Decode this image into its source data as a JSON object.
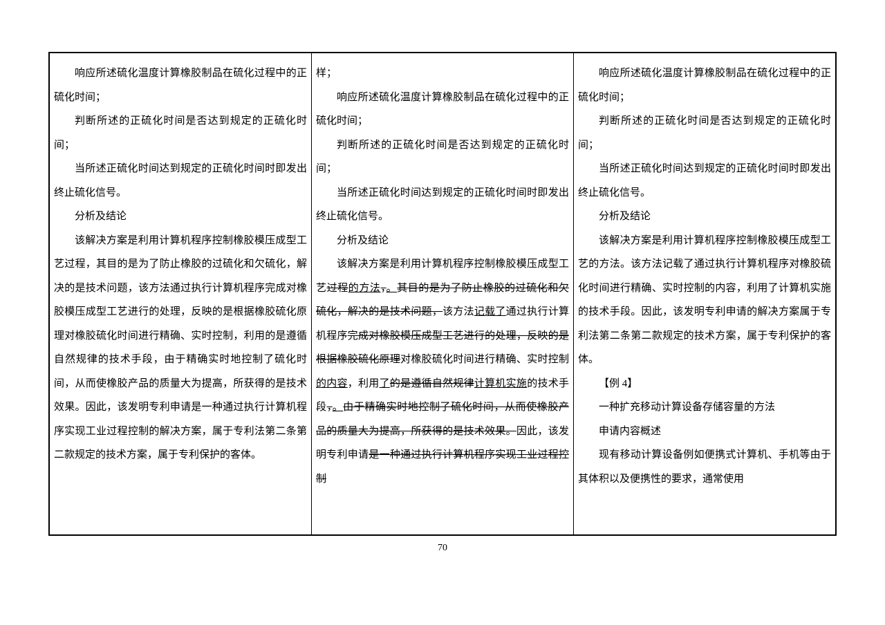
{
  "pageNumber": "70",
  "column1": {
    "p1": "响应所述硫化温度计算橡胶制品在硫化过程中的正硫化时间；",
    "p2": "判断所述的正硫化时间是否达到规定的正硫化时间；",
    "p3": "当所述正硫化时间达到规定的正硫化时间时即发出终止硫化信号。",
    "p4": "分析及结论",
    "p5": "该解决方案是利用计算机程序控制橡胶模压成型工艺过程，其目的是为了防止橡胶的过硫化和欠硫化，解决的是技术问题，该方法通过执行计算机程序完成对橡胶模压成型工艺进行的处理，反映的是根据橡胶硫化原理对橡胶硫化时间进行精确、实时控制，利用的是遵循自然规律的技术手段，由于精确实时地控制了硫化时间，从而使橡胶产品的质量大为提高，所获得的是技术效果。因此，该发明专利申请是一种通过执行计算机程序实现工业过程控制的解决方案，属于专利法第二条第二款规定的技术方案，属于专利保护的客体。"
  },
  "column2": {
    "p1": "样；",
    "p2": "响应所述硫化温度计算橡胶制品在硫化过程中的正硫化时间；",
    "p3": "判断所述的正硫化时间是否达到规定的正硫化时间；",
    "p4": "当所述正硫化时间达到规定的正硫化时间时即发出终止硫化信号。",
    "p5": "分析及结论",
    "p6a": "该解决方案是利用计算机程序控制橡胶模压成型工艺",
    "p6b_strike": "过程",
    "p6c_under": "的方法",
    "p6d_strike": "，",
    "p6e_under": "。",
    "p6f_strike": "其目的是为了防止橡胶的过硫化和欠硫化，解决的是技术问题，",
    "p6g": "该方法",
    "p6h_under": "记载了",
    "p6i": "通过执行计算机程序",
    "p6j_strike": "完成对橡胶模压成型工艺进行的处理，反映的是根据橡胶硫化原理",
    "p6k": "对橡胶硫化时间进行精确、实时控制",
    "p6l_under": "的内容",
    "p6m": "，利用",
    "p6n_under": "了",
    "p6o_strike": "的是遵循自然规律",
    "p6p_under": "计算机实施",
    "p6q": "的技术手段",
    "p6r_strike": "，",
    "p6s_under": "。",
    "p6t_strike": "由于精确实时地控制了硫化时间，从而使橡胶产品的质量大为提高，所获得的是技术效果。",
    "p6u": "因此，该发明专利申请",
    "p6v_strike": "是一种通过执行计算机程序实现工业过程控制"
  },
  "column3": {
    "p1": "响应所述硫化温度计算橡胶制品在硫化过程中的正硫化时间；",
    "p2": "判断所述的正硫化时间是否达到规定的正硫化时间；",
    "p3": "当所述正硫化时间达到规定的正硫化时间时即发出终止硫化信号。",
    "p4": "分析及结论",
    "p5": "该解决方案是利用计算机程序控制橡胶模压成型工艺的方法。该方法记载了通过执行计算机程序对橡胶硫化时间进行精确、实时控制的内容，利用了计算机实施的技术手段。因此，该发明专利申请的解决方案属于专利法第二条第二款规定的技术方案，属于专利保护的客体。",
    "p6": "【例 4】",
    "p7": "一种扩充移动计算设备存储容量的方法",
    "p8": "申请内容概述",
    "p9": "现有移动计算设备例如便携式计算机、手机等由于其体积以及便携性的要求，通常使用"
  }
}
